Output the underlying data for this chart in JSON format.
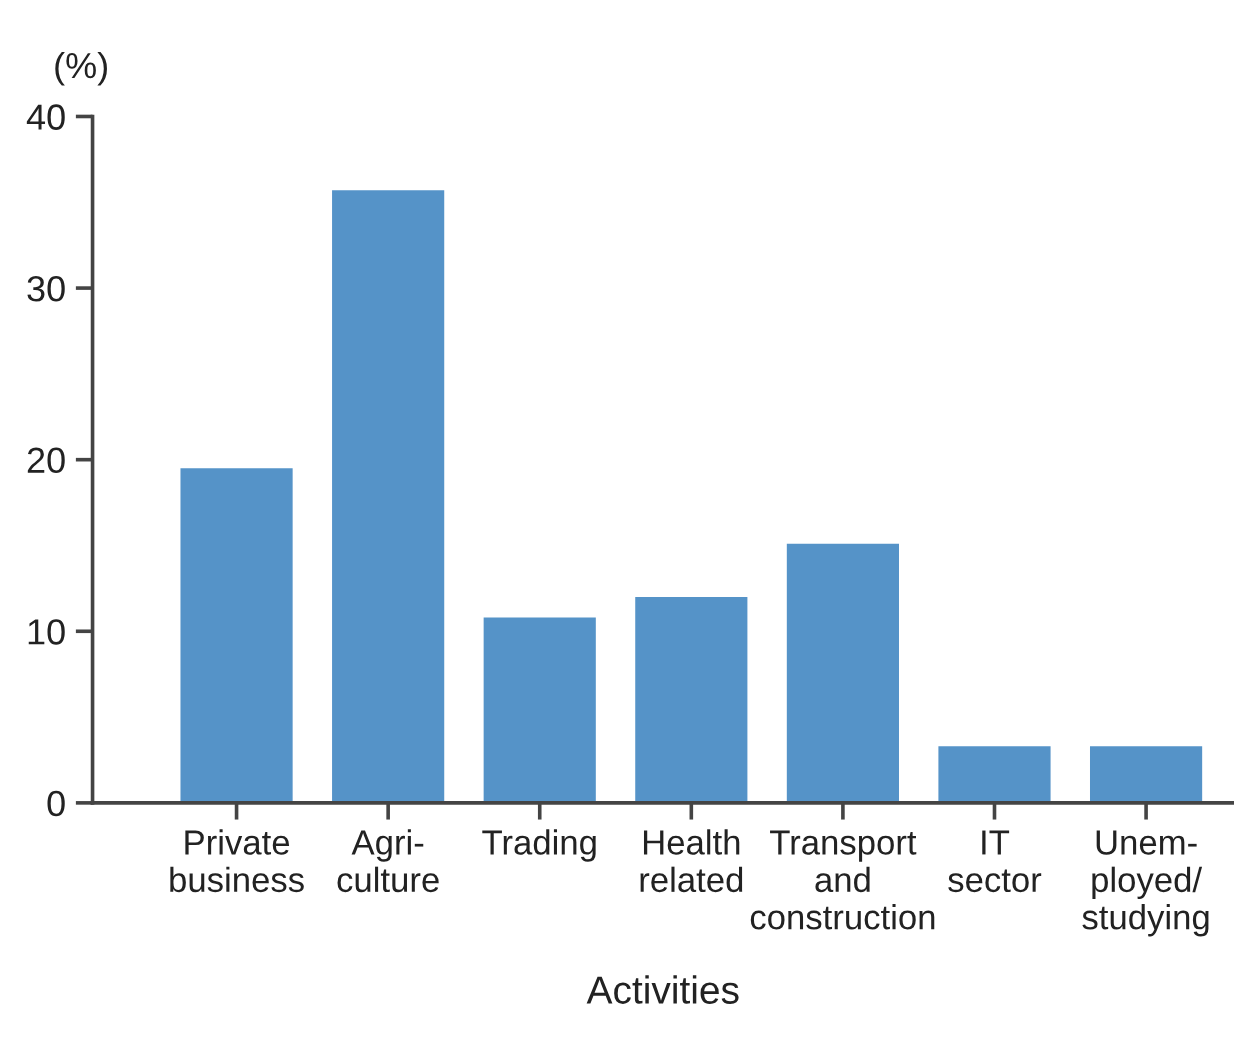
{
  "chart_data": {
    "type": "bar",
    "categories": [
      "Private\nbusiness",
      "Agri-\nculture",
      "Trading",
      "Health\nrelated",
      "Transport\nand\nconstruction",
      "IT\nsector",
      "Unem-\nployed/\nstudying"
    ],
    "values": [
      19.5,
      35.7,
      10.8,
      12.0,
      15.1,
      3.3,
      3.3
    ],
    "color": "#5593c8",
    "xlabel": "Activities",
    "ylabel": "(%)",
    "ylim": [
      0,
      40
    ],
    "yticks": [
      0,
      10,
      20,
      30,
      40
    ],
    "grid": false
  }
}
